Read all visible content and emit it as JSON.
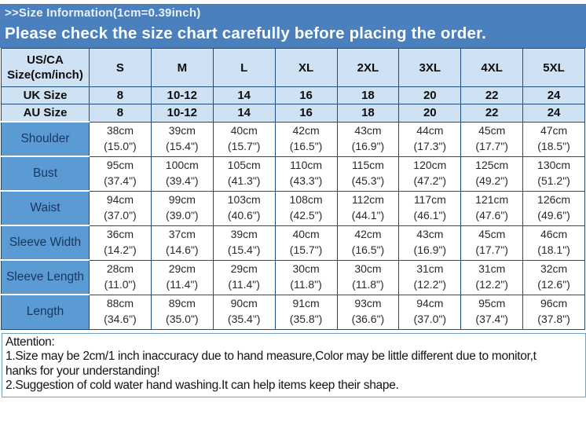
{
  "banner": {
    "line1": ">>Size Information(1cm=0.39inch)",
    "line2": "Please check the size chart carefully before placing the order."
  },
  "table": {
    "corner_header_line1": "US/CA",
    "corner_header_line2": "Size(cm/inch)",
    "size_columns": [
      "S",
      "M",
      "L",
      "XL",
      "2XL",
      "3XL",
      "4XL",
      "5XL"
    ],
    "uk_row": {
      "label": "UK Size",
      "values": [
        "8",
        "10-12",
        "14",
        "16",
        "18",
        "20",
        "22",
        "24"
      ]
    },
    "au_row": {
      "label": "AU Size",
      "values": [
        "8",
        "10-12",
        "14",
        "16",
        "18",
        "20",
        "22",
        "24"
      ]
    },
    "measurement_rows": [
      {
        "label": "Shoulder",
        "cm": [
          "38cm",
          "39cm",
          "40cm",
          "42cm",
          "43cm",
          "44cm",
          "45cm",
          "47cm"
        ],
        "inch": [
          "(15.0\")",
          "(15.4\")",
          "(15.7\")",
          "(16.5\")",
          "(16.9\")",
          "(17.3\")",
          "(17.7\")",
          "(18.5\")"
        ]
      },
      {
        "label": "Bust",
        "cm": [
          "95cm",
          "100cm",
          "105cm",
          "110cm",
          "115cm",
          "120cm",
          "125cm",
          "130cm"
        ],
        "inch": [
          "(37.4\")",
          "(39.4\")",
          "(41.3\")",
          "(43.3\")",
          "(45.3\")",
          "(47.2\")",
          "(49.2\")",
          "(51.2\")"
        ]
      },
      {
        "label": "Waist",
        "cm": [
          "94cm",
          "99cm",
          "103cm",
          "108cm",
          "112cm",
          "117cm",
          "121cm",
          "126cm"
        ],
        "inch": [
          "(37.0\")",
          "(39.0\")",
          "(40.6\")",
          "(42.5\")",
          "(44.1\")",
          "(46.1\")",
          "(47.6\")",
          "(49.6\")"
        ]
      },
      {
        "label": "Sleeve Width",
        "cm": [
          "36cm",
          "37cm",
          "39cm",
          "40cm",
          "42cm",
          "43cm",
          "45cm",
          "46cm"
        ],
        "inch": [
          "(14.2\")",
          "(14.6\")",
          "(15.4\")",
          "(15.7\")",
          "(16.5\")",
          "(16.9\")",
          "(17.7\")",
          "(18.1\")"
        ]
      },
      {
        "label": "Sleeve Length",
        "cm": [
          "28cm",
          "29cm",
          "29cm",
          "30cm",
          "30cm",
          "31cm",
          "31cm",
          "32cm"
        ],
        "inch": [
          "(11.0\")",
          "(11.4\")",
          "(11.4\")",
          "(11.8\")",
          "(11.8\")",
          "(12.2\")",
          "(12.2\")",
          "(12.6\")"
        ]
      },
      {
        "label": "Length",
        "cm": [
          "88cm",
          "89cm",
          "90cm",
          "91cm",
          "93cm",
          "94cm",
          "95cm",
          "96cm"
        ],
        "inch": [
          "(34.6\")",
          "(35.0\")",
          "(35.4\")",
          "(35.8\")",
          "(36.6\")",
          "(37.0\")",
          "(37.4\")",
          "(37.8\")"
        ]
      }
    ]
  },
  "attention": {
    "lines": [
      "Attention:",
      "1.Size may be 2cm/1 inch inaccuracy due to hand measure,Color may be little different due to monitor,t",
      "hanks for your understanding!",
      "2.Suggestion of cold water hand washing.It can help items keep their shape."
    ]
  },
  "colors": {
    "banner_blue": "#4a80bd",
    "light_blue": "#cfe2f3",
    "label_blue": "#5b9bd5",
    "border_navy": "#1f4e79",
    "label_text": "#17375e"
  }
}
